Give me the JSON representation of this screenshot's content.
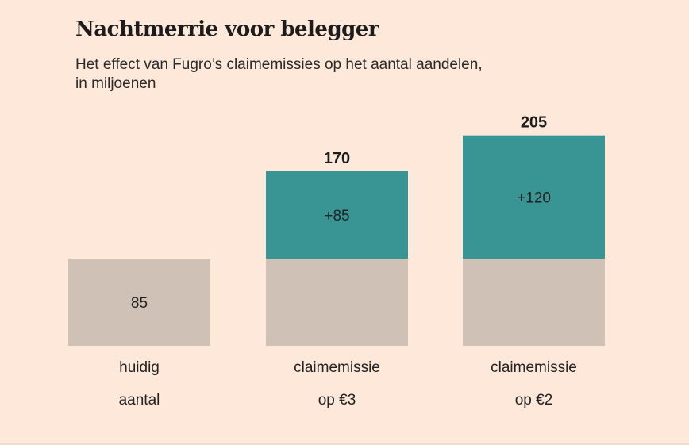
{
  "header": {
    "title": "Nachtmerrie voor belegger",
    "subtitle_line1": "Het effect van Fugro’s claimemissies op het aantal aandelen,",
    "subtitle_line2": "in miljoenen"
  },
  "colors": {
    "background": "#fde8da",
    "base": "#cfc1b5",
    "increase": "#389593",
    "text": "#222222"
  },
  "chart_data": {
    "type": "bar",
    "stacked": true,
    "categories": [
      [
        "huidig",
        "aantal"
      ],
      [
        "claimemissie",
        "op €3"
      ],
      [
        "claimemissie",
        "op €2"
      ]
    ],
    "series": [
      {
        "values": [
          85,
          85,
          85
        ],
        "labels": [
          "85",
          "",
          ""
        ]
      },
      {
        "values": [
          0,
          85,
          120
        ],
        "labels": [
          "",
          "+85",
          "+120"
        ]
      }
    ],
    "totals": [
      "",
      "170",
      "205"
    ],
    "title": "Nachtmerrie voor belegger",
    "subtitle": "Het effect van Fugro’s claimemissies op het aantal aandelen, in miljoenen",
    "ylim": [
      0,
      205
    ],
    "grid": false,
    "legend": "none"
  }
}
